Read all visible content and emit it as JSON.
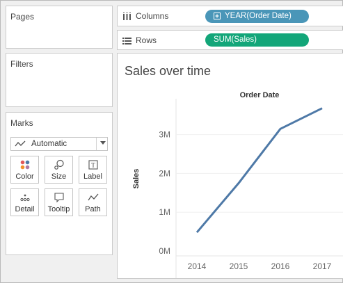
{
  "panels": {
    "pages": {
      "title": "Pages"
    },
    "filters": {
      "title": "Filters"
    },
    "marks": {
      "title": "Marks",
      "mark_type": {
        "icon": "line-chart-icon",
        "label": "Automatic"
      },
      "tiles": [
        {
          "label": "Color",
          "icon": "color-dots-icon"
        },
        {
          "label": "Size",
          "icon": "size-icon"
        },
        {
          "label": "Label",
          "icon": "label-icon"
        },
        {
          "label": "Detail",
          "icon": "detail-icon"
        },
        {
          "label": "Tooltip",
          "icon": "tooltip-icon"
        },
        {
          "label": "Path",
          "icon": "path-icon"
        }
      ]
    }
  },
  "shelves": {
    "columns": {
      "label": "Columns",
      "icon": "columns-icon",
      "pill": "YEAR(Order Date)",
      "pill_color": "#4a96b8"
    },
    "rows": {
      "label": "Rows",
      "icon": "rows-icon",
      "pill": "SUM(Sales)",
      "pill_color": "#13a679"
    }
  },
  "sheet": {
    "title": "Sales over time"
  },
  "chart_data": {
    "type": "line",
    "title": "Order Date",
    "xlabel": "",
    "ylabel": "Sales",
    "categories": [
      "2014",
      "2015",
      "2016",
      "2017"
    ],
    "series": [
      {
        "values": [
          480000,
          1750000,
          3150000,
          3680000
        ],
        "color": "#4e79a7"
      }
    ],
    "ylim": [
      0,
      3800000
    ],
    "yticks": [
      0,
      1000000,
      2000000,
      3000000
    ],
    "ytick_labels": [
      "0M",
      "1M",
      "2M",
      "3M"
    ],
    "grid": true,
    "legend": "none"
  }
}
